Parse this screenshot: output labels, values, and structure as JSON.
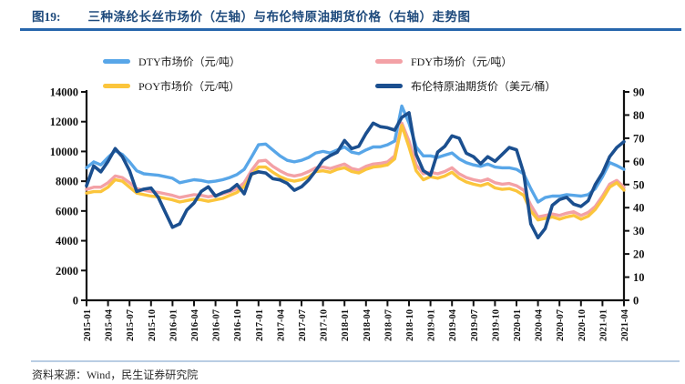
{
  "header": {
    "figure_label": "图19:",
    "title": "三种涤纶长丝市场价（左轴）与布伦特原油期货价格（右轴）走势图"
  },
  "footer": {
    "source_label": "资料来源：",
    "source_text": "Wind，民生证券研究院"
  },
  "colors": {
    "title_blue": "#1e4a7c",
    "header_rule_blue": "#2766ac",
    "footer_rule_blue": "#b9cde3",
    "axis_black": "#111111",
    "dty_blue": "#58a6e8",
    "fdy_pink": "#f3a1a6",
    "poy_yellow": "#fbc53c",
    "brent_navy": "#1b4f8f"
  },
  "chart_data": {
    "type": "line",
    "title": "三种涤纶长丝市场价（左轴）与布伦特原油期货价格（右轴）走势图",
    "x_frequency": "monthly",
    "x_start": "2015-01",
    "x_end": "2021-04",
    "x_tick_labels": [
      "2015-01",
      "2015-04",
      "2015-07",
      "2015-10",
      "2016-01",
      "2016-04",
      "2016-07",
      "2016-10",
      "2017-01",
      "2017-04",
      "2017-07",
      "2017-10",
      "2018-01",
      "2018-04",
      "2018-07",
      "2018-10",
      "2019-01",
      "2019-04",
      "2019-07",
      "2019-10",
      "2020-01",
      "2020-04",
      "2020-07",
      "2020-10",
      "2021-01",
      "2021-04"
    ],
    "left_axis": {
      "min": 0,
      "max": 14000,
      "step": 2000,
      "unit": "元/吨"
    },
    "right_axis": {
      "min": 0,
      "max": 90,
      "step": 10,
      "unit": "美元/桶"
    },
    "grid": false,
    "legend_position": "top",
    "draw_order": [
      1,
      2,
      0,
      3
    ],
    "series": [
      {
        "name": "DTY市场价（元/吨）",
        "axis": "left",
        "color": "#58a6e8",
        "values": [
          8900,
          9300,
          9100,
          9600,
          10050,
          9800,
          9300,
          8700,
          8500,
          8450,
          8400,
          8300,
          8200,
          7900,
          8000,
          8100,
          8050,
          7950,
          8000,
          8100,
          8250,
          8450,
          8800,
          9600,
          10450,
          10500,
          10100,
          9700,
          9400,
          9300,
          9400,
          9600,
          9900,
          10000,
          9900,
          10100,
          10300,
          9950,
          9850,
          10100,
          10300,
          10300,
          10450,
          10700,
          13050,
          11900,
          10300,
          9700,
          9700,
          9600,
          9750,
          9900,
          9500,
          9250,
          9100,
          9000,
          9150,
          8950,
          8900,
          8900,
          8800,
          8500,
          7500,
          6600,
          6900,
          7000,
          7000,
          7100,
          7050,
          7000,
          7100,
          7500,
          8300,
          9250,
          9050,
          8800
        ]
      },
      {
        "name": "FDY市场价（元/吨）",
        "axis": "left",
        "color": "#f3a1a6",
        "values": [
          7450,
          7600,
          7600,
          7900,
          8350,
          8250,
          7900,
          7500,
          7400,
          7300,
          7250,
          7150,
          7050,
          6900,
          7000,
          7100,
          7050,
          6950,
          7050,
          7150,
          7300,
          7500,
          7900,
          8700,
          9350,
          9400,
          9000,
          8700,
          8450,
          8350,
          8450,
          8650,
          8900,
          8950,
          8850,
          9000,
          9150,
          8850,
          8750,
          9000,
          9150,
          9200,
          9300,
          9700,
          11900,
          10700,
          9100,
          8500,
          8600,
          8500,
          8650,
          8900,
          8500,
          8250,
          8100,
          8000,
          8150,
          7900,
          7800,
          7850,
          7700,
          7400,
          6400,
          5600,
          5700,
          5800,
          5700,
          5850,
          5950,
          5700,
          5900,
          6300,
          7000,
          7800,
          8050,
          7600
        ]
      },
      {
        "name": "POY市场价（元/吨）",
        "axis": "left",
        "color": "#fbc53c",
        "values": [
          7200,
          7300,
          7300,
          7600,
          8100,
          8000,
          7600,
          7200,
          7100,
          7000,
          6950,
          6850,
          6750,
          6600,
          6700,
          6800,
          6750,
          6650,
          6750,
          6850,
          7050,
          7250,
          7650,
          8400,
          8950,
          8950,
          8600,
          8300,
          8100,
          8000,
          8100,
          8300,
          8650,
          8700,
          8600,
          8800,
          8900,
          8650,
          8550,
          8800,
          8950,
          9000,
          9100,
          9500,
          11750,
          10300,
          8700,
          8100,
          8300,
          8200,
          8350,
          8600,
          8200,
          7950,
          7800,
          7700,
          7850,
          7550,
          7450,
          7500,
          7350,
          7050,
          6000,
          5400,
          5500,
          5600,
          5450,
          5600,
          5700,
          5450,
          5650,
          6100,
          6800,
          7600,
          7900,
          7400
        ]
      },
      {
        "name": "布伦特原油期货价（美元/桶）",
        "axis": "right",
        "color": "#1b4f8f",
        "values": [
          49.5,
          58,
          55.5,
          60,
          65.5,
          62,
          56,
          47,
          48,
          48.5,
          44.5,
          38,
          31.5,
          33,
          39,
          42,
          47,
          49,
          45,
          46.5,
          47.5,
          50,
          46,
          54.5,
          55.5,
          55,
          52.5,
          52,
          50.5,
          47.5,
          49,
          52,
          56,
          60.5,
          62.5,
          64,
          69,
          65.5,
          66.5,
          72,
          76.5,
          75,
          74.5,
          73.5,
          79,
          81,
          63,
          56,
          54,
          64,
          66.5,
          71,
          70,
          63.5,
          62,
          59,
          62,
          60,
          63,
          66,
          65,
          55,
          33,
          27,
          31,
          41,
          43.5,
          44.5,
          41.5,
          40.5,
          43,
          50,
          55,
          62,
          66,
          68.5
        ]
      }
    ]
  }
}
